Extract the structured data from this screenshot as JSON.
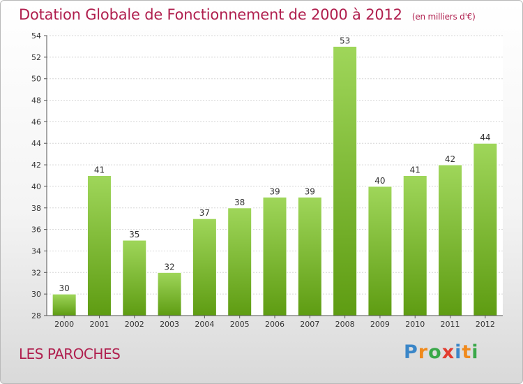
{
  "header": {
    "title": "Dotation Globale de Fonctionnement de 2000 à 2012",
    "subtitle": "(en milliers d'€)"
  },
  "footer": {
    "place": "LES PAROCHES",
    "logo_text": "Proxiti",
    "logo_letters": [
      {
        "char": "P",
        "color": "#3a86c8"
      },
      {
        "char": "r",
        "color": "#f08a1c"
      },
      {
        "char": "o",
        "color": "#3aa849"
      },
      {
        "char": "x",
        "color": "#e23c2f"
      },
      {
        "char": "i",
        "color": "#3a86c8"
      },
      {
        "char": "t",
        "color": "#f08a1c"
      },
      {
        "char": "i",
        "color": "#3aa849"
      }
    ]
  },
  "chart_data": {
    "type": "bar",
    "title": "Dotation Globale de Fonctionnement de 2000 à 2012",
    "subtitle": "(en milliers d'€)",
    "xlabel": "",
    "ylabel": "",
    "categories": [
      "2000",
      "2001",
      "2002",
      "2003",
      "2004",
      "2005",
      "2006",
      "2007",
      "2008",
      "2009",
      "2010",
      "2011",
      "2012"
    ],
    "values": [
      30,
      41,
      35,
      32,
      37,
      38,
      39,
      39,
      53,
      40,
      41,
      42,
      44
    ],
    "ylim": [
      28,
      54
    ],
    "yticks": [
      28,
      30,
      32,
      34,
      36,
      38,
      40,
      42,
      44,
      46,
      48,
      50,
      52,
      54
    ],
    "grid": true,
    "bar_color_top": "#9fd65a",
    "bar_color_bottom": "#5e9c12"
  }
}
